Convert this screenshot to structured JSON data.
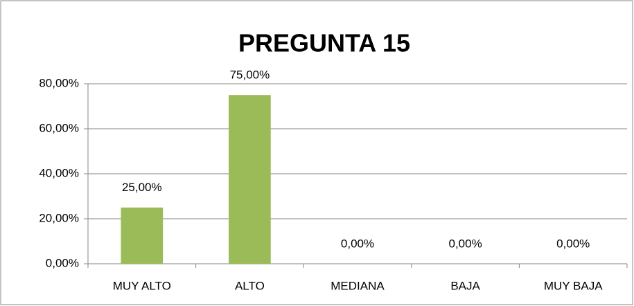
{
  "chart_data": {
    "type": "bar",
    "title": "PREGUNTA 15",
    "categories": [
      "MUY ALTO",
      "ALTO",
      "MEDIANA",
      "BAJA",
      "MUY BAJA"
    ],
    "values": [
      25,
      75,
      0,
      0,
      0
    ],
    "value_labels": [
      "25,00%",
      "75,00%",
      "0,00%",
      "0,00%",
      "0,00%"
    ],
    "color": "#9bbb59",
    "ylim": [
      0,
      80
    ],
    "yticks": [
      {
        "value": 0,
        "label": "0,00%"
      },
      {
        "value": 20,
        "label": "20,00%"
      },
      {
        "value": 40,
        "label": "40,00%"
      },
      {
        "value": 60,
        "label": "60,00%"
      },
      {
        "value": 80,
        "label": "80,00%"
      }
    ],
    "grid": true
  }
}
